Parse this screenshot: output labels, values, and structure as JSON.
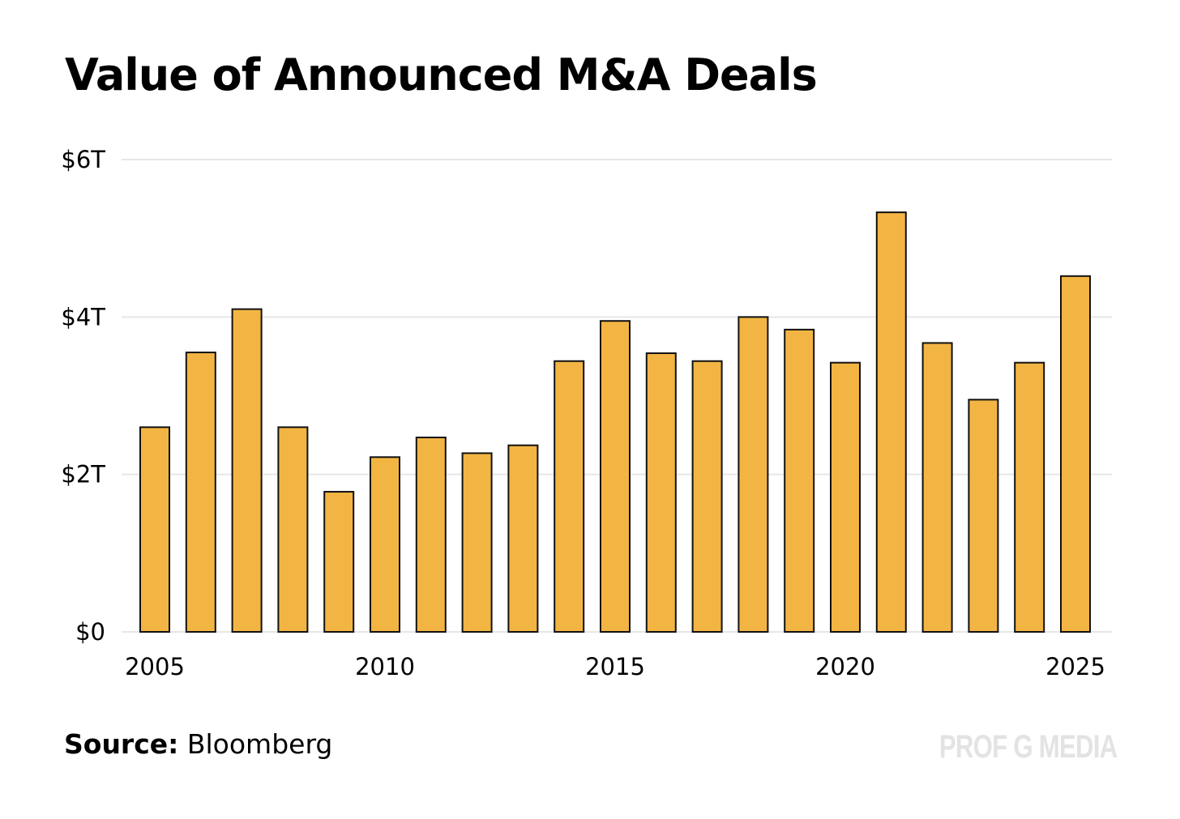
{
  "chart_data": {
    "type": "bar",
    "title": "Value of Announced M&A Deals",
    "xlabel": "",
    "ylabel": "",
    "categories": [
      2005,
      2006,
      2007,
      2008,
      2009,
      2010,
      2011,
      2012,
      2013,
      2014,
      2015,
      2016,
      2017,
      2018,
      2019,
      2020,
      2021,
      2022,
      2023,
      2024,
      2025
    ],
    "values": [
      2.6,
      3.55,
      4.1,
      2.6,
      1.78,
      2.22,
      2.47,
      2.27,
      2.37,
      3.44,
      3.95,
      3.54,
      3.44,
      4.0,
      3.84,
      3.42,
      5.33,
      3.67,
      2.95,
      3.42,
      4.52
    ],
    "x_tick_labels": [
      "2005",
      "2010",
      "2015",
      "2020",
      "2025"
    ],
    "x_tick_years": [
      2005,
      2010,
      2015,
      2020,
      2025
    ],
    "y_tick_labels": [
      "$0",
      "$2T",
      "$4T",
      "$6T"
    ],
    "y_tick_values": [
      0,
      2,
      4,
      6
    ],
    "ylim": [
      0,
      6
    ],
    "unit": "trillions of USD",
    "grid": true,
    "legend": "none",
    "colors": {
      "bar_fill": "#F2B544",
      "bar_stroke": "#111111",
      "grid": "#e6e6e6"
    }
  },
  "source": {
    "label": "Source:",
    "text": "Bloomberg"
  },
  "watermark": "PROF G MEDIA"
}
